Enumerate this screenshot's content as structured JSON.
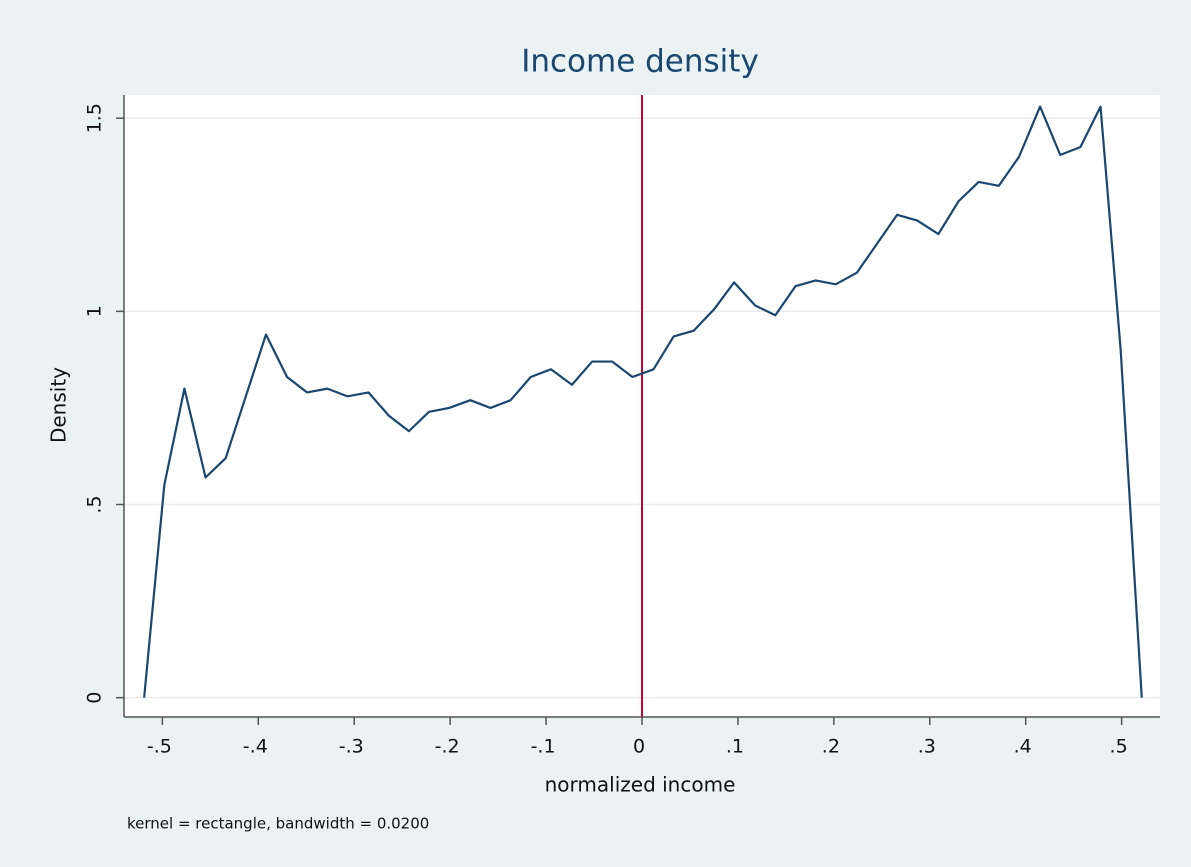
{
  "chart_data": {
    "type": "line",
    "title": "Income density",
    "xlabel": "normalized income",
    "ylabel": "Density",
    "note": "kernel = rectangle, bandwidth = 0.0200",
    "x": [
      -0.519,
      -0.498,
      -0.477,
      -0.455,
      -0.434,
      -0.413,
      -0.392,
      -0.37,
      -0.349,
      -0.328,
      -0.307,
      -0.285,
      -0.264,
      -0.243,
      -0.222,
      -0.201,
      -0.179,
      -0.158,
      -0.137,
      -0.116,
      -0.095,
      -0.073,
      -0.052,
      -0.031,
      -0.01,
      0.012,
      0.033,
      0.054,
      0.075,
      0.096,
      0.118,
      0.139,
      0.16,
      0.181,
      0.202,
      0.224,
      0.245,
      0.266,
      0.287,
      0.309,
      0.33,
      0.351,
      0.372,
      0.393,
      0.415,
      0.436,
      0.457,
      0.478,
      0.499,
      0.521
    ],
    "values": [
      0,
      0.55,
      0.8,
      0.57,
      0.62,
      0.78,
      0.94,
      0.83,
      0.79,
      0.8,
      0.78,
      0.79,
      0.73,
      0.69,
      0.74,
      0.75,
      0.77,
      0.75,
      0.77,
      0.83,
      0.85,
      0.81,
      0.87,
      0.87,
      0.83,
      0.85,
      0.935,
      0.95,
      1.005,
      1.075,
      1.015,
      0.99,
      1.065,
      1.08,
      1.07,
      1.1,
      1.175,
      1.25,
      1.235,
      1.2,
      1.285,
      1.335,
      1.325,
      1.4,
      1.53,
      1.405,
      1.425,
      1.53,
      0.9,
      0
    ],
    "color": "#1a476f",
    "xline": 0,
    "xline_color": "#c10534",
    "xlim": [
      -0.54,
      0.54
    ],
    "ylim": [
      -0.05,
      1.56
    ],
    "xticks": [
      {
        "value": -0.5,
        "label": "-.5"
      },
      {
        "value": -0.4,
        "label": "-.4"
      },
      {
        "value": -0.3,
        "label": "-.3"
      },
      {
        "value": -0.2,
        "label": "-.2"
      },
      {
        "value": -0.1,
        "label": "-.1"
      },
      0,
      {
        "value": 0.1,
        "label": ".1"
      },
      {
        "value": 0.2,
        "label": ".2"
      },
      {
        "value": 0.3,
        "label": ".3"
      },
      {
        "value": 0.4,
        "label": ".4"
      },
      {
        "value": 0.5,
        "label": ".5"
      }
    ],
    "yticks": [
      0,
      {
        "value": 0.5,
        "label": ".5"
      },
      1,
      1.5
    ],
    "grid": true
  }
}
